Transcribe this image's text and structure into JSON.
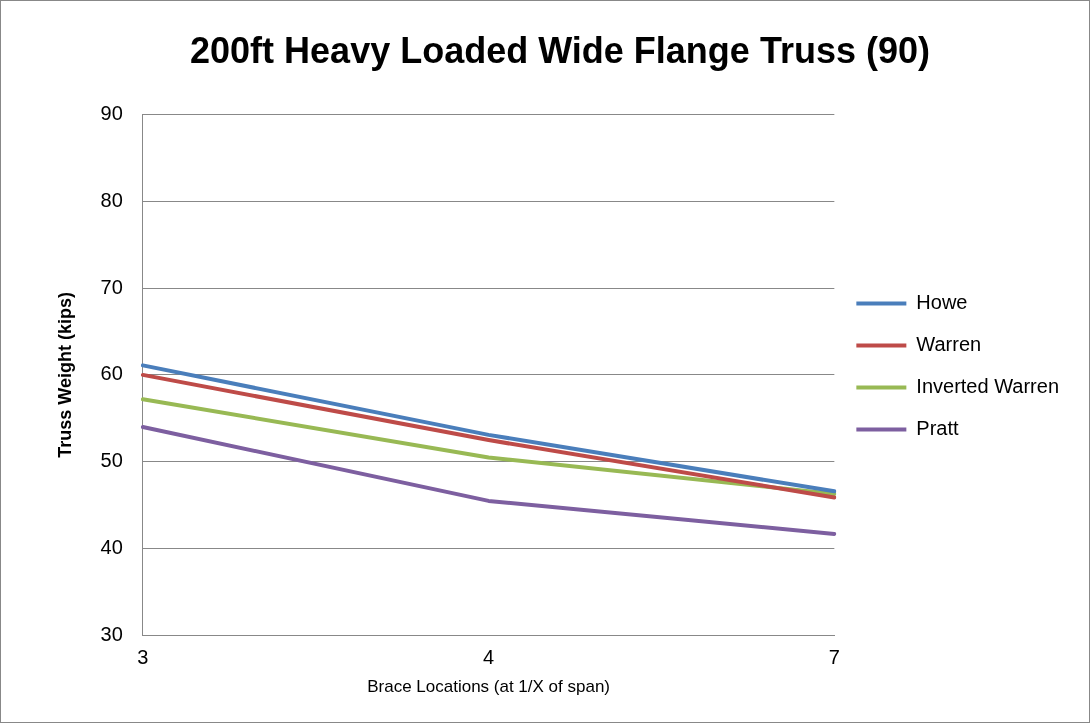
{
  "chart_data": {
    "type": "line",
    "title": "200ft Heavy Loaded Wide Flange Truss (90)",
    "xlabel": "Brace Locations (at 1/X of span)",
    "ylabel": "Truss Weight (kips)",
    "categories": [
      "3",
      "4",
      "7"
    ],
    "series": [
      {
        "name": "Howe",
        "color": "#4a7ebb",
        "values": [
          61.1,
          53.1,
          46.6
        ]
      },
      {
        "name": "Warren",
        "color": "#be4b48",
        "values": [
          60,
          52.5,
          45.9
        ]
      },
      {
        "name": "Inverted Warren",
        "color": "#98b954",
        "values": [
          57.2,
          50.5,
          46.3
        ]
      },
      {
        "name": "Pratt",
        "color": "#7d5fa0",
        "values": [
          54,
          45.5,
          41.7
        ]
      }
    ],
    "ylim": [
      30,
      90
    ],
    "yticks": [
      30,
      40,
      50,
      60,
      70,
      80,
      90
    ],
    "grid": "y",
    "legend": "right",
    "marker": "none",
    "line_style": "solid"
  }
}
